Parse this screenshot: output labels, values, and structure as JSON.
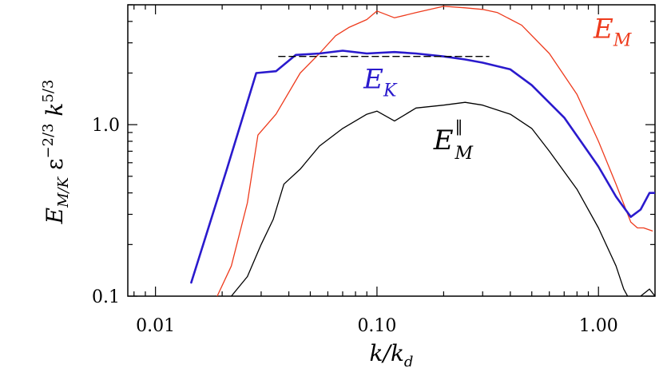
{
  "chart_data": {
    "type": "line",
    "x_scale": "log",
    "y_scale": "log",
    "xlim": [
      0.0075,
      1.8
    ],
    "ylim": [
      0.1,
      5.0
    ],
    "x_ticks": [
      {
        "value": 0.01,
        "label": "0.01"
      },
      {
        "value": 0.1,
        "label": "0.10"
      },
      {
        "value": 1.0,
        "label": "1.00"
      }
    ],
    "y_ticks": [
      {
        "value": 0.1,
        "label": "0.1"
      },
      {
        "value": 1.0,
        "label": "1.0"
      }
    ],
    "xlabel": {
      "base": "k/k",
      "sub": "d"
    },
    "ylabel": {
      "base": "E",
      "sub": "M/K",
      "mid": " ε",
      "mid_sup": "−2/3",
      "tail": " k",
      "tail_sup": "5/3"
    },
    "grid": false,
    "series": [
      {
        "name": "E_M",
        "label": {
          "base": "E",
          "sub": "M",
          "sup": ""
        },
        "color": "#ee3b1d",
        "x": [
          0.019,
          0.022,
          0.026,
          0.029,
          0.035,
          0.045,
          0.055,
          0.065,
          0.075,
          0.09,
          0.1,
          0.12,
          0.15,
          0.2,
          0.25,
          0.3,
          0.35,
          0.45,
          0.6,
          0.8,
          1.0,
          1.2,
          1.4,
          1.5,
          1.6,
          1.75
        ],
        "y": [
          0.1,
          0.15,
          0.35,
          0.87,
          1.15,
          2.0,
          2.6,
          3.3,
          3.7,
          4.1,
          4.6,
          4.2,
          4.5,
          4.9,
          4.8,
          4.7,
          4.5,
          3.8,
          2.6,
          1.5,
          0.8,
          0.45,
          0.27,
          0.25,
          0.25,
          0.24
        ]
      },
      {
        "name": "E_K",
        "label": {
          "base": "E",
          "sub": "K",
          "sup": ""
        },
        "color": "#2a1acd",
        "x": [
          0.0145,
          0.021,
          0.0285,
          0.035,
          0.043,
          0.055,
          0.07,
          0.09,
          0.12,
          0.15,
          0.2,
          0.25,
          0.3,
          0.4,
          0.5,
          0.7,
          1.0,
          1.2,
          1.4,
          1.55,
          1.7,
          1.8
        ],
        "y": [
          0.12,
          0.55,
          2.0,
          2.05,
          2.55,
          2.6,
          2.7,
          2.6,
          2.65,
          2.6,
          2.5,
          2.4,
          2.3,
          2.1,
          1.7,
          1.1,
          0.57,
          0.38,
          0.29,
          0.32,
          0.4,
          0.4
        ]
      },
      {
        "name": "E_M_parallel",
        "label": {
          "base": "E",
          "sub": "M",
          "sup": "‖"
        },
        "color": "#000000",
        "x": [
          0.022,
          0.026,
          0.03,
          0.034,
          0.038,
          0.045,
          0.055,
          0.07,
          0.09,
          0.1,
          0.12,
          0.15,
          0.2,
          0.25,
          0.3,
          0.4,
          0.5,
          0.6,
          0.8,
          1.0,
          1.2,
          1.3,
          1.45,
          1.55,
          1.7,
          1.8
        ],
        "y": [
          0.1,
          0.13,
          0.2,
          0.28,
          0.45,
          0.55,
          0.75,
          0.95,
          1.15,
          1.2,
          1.05,
          1.25,
          1.3,
          1.35,
          1.3,
          1.15,
          0.95,
          0.7,
          0.42,
          0.25,
          0.15,
          0.11,
          0.085,
          0.1,
          0.11,
          0.1
        ]
      },
      {
        "name": "reference",
        "color": "#000000",
        "dashed": true,
        "x": [
          0.036,
          0.32
        ],
        "y": [
          2.5,
          2.5
        ]
      }
    ],
    "annotations": [
      {
        "series": "E_M",
        "x": 0.95,
        "y": 3.2
      },
      {
        "series": "E_K",
        "x": 0.087,
        "y": 1.63
      },
      {
        "series": "E_M_parallel",
        "x": 0.18,
        "y": 0.72
      }
    ]
  }
}
